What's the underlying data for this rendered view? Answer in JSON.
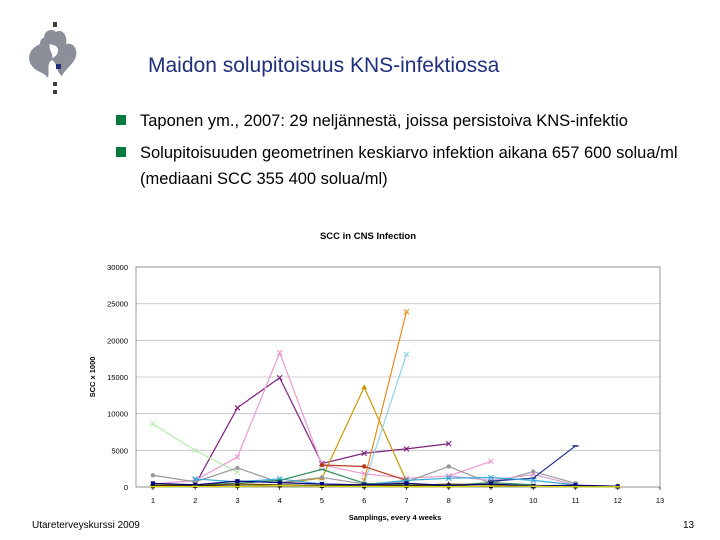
{
  "slide": {
    "title": "Maidon solupitoisuus KNS-infektiossa",
    "bullets": [
      "Taponen ym., 2007: 29 neljännestä, joissa persistoiva KNS-infektio",
      "Solupitoisuuden geometrinen keskiarvo infektion aikana 657 600 solua/ml (mediaani SCC 355 400 solua/ml)"
    ],
    "footer_left": "Utareterveyskurssi 2009",
    "page_number": "13",
    "logo_icon": "university-helsinki-flame-logo-icon"
  },
  "chart_data": {
    "type": "line",
    "title": "SCC in CNS Infection",
    "xlabel": "Samplings, every 4 weeks",
    "ylabel": "SCC x 1000",
    "x": [
      1,
      2,
      3,
      4,
      5,
      6,
      7,
      8,
      9,
      10,
      11,
      12,
      13
    ],
    "xticks": [
      "1",
      "2",
      "3",
      "4",
      "5",
      "6",
      "7",
      "8",
      "9",
      "10",
      "11",
      "12",
      "13"
    ],
    "ylim": [
      0,
      30000
    ],
    "yticks": [
      "0",
      "5000",
      "10000",
      "15000",
      "20000",
      "25000",
      "30000"
    ],
    "grid": "horizontal",
    "series": [
      {
        "color": "#7f1f7f",
        "marker": "x",
        "points": [
          [
            2,
            300
          ],
          [
            3,
            10800
          ],
          [
            4,
            14900
          ],
          [
            5,
            3200
          ],
          [
            6,
            4600
          ],
          [
            7,
            5200
          ],
          [
            8,
            5900
          ]
        ]
      },
      {
        "color": "#e79bd1",
        "marker": "x",
        "points": [
          [
            1,
            400
          ],
          [
            2,
            900
          ],
          [
            3,
            4100
          ],
          [
            4,
            18300
          ],
          [
            5,
            3000
          ],
          [
            6,
            1800
          ],
          [
            7,
            1200
          ],
          [
            8,
            1500
          ],
          [
            9,
            3500
          ]
        ]
      },
      {
        "color": "#e88c1e",
        "marker": "x",
        "points": [
          [
            6,
            900
          ],
          [
            7,
            23900
          ]
        ]
      },
      {
        "color": "#c99a00",
        "marker": "tri",
        "points": [
          [
            4,
            500
          ],
          [
            5,
            1200
          ],
          [
            6,
            13600
          ],
          [
            7,
            800
          ]
        ]
      },
      {
        "color": "#8fd3e8",
        "marker": "x",
        "points": [
          [
            6,
            400
          ],
          [
            7,
            18100
          ]
        ]
      },
      {
        "color": "#b8ecb0",
        "marker": "x",
        "points": [
          [
            1,
            8600
          ],
          [
            2,
            5000
          ],
          [
            3,
            2000
          ]
        ]
      },
      {
        "color": "#999999",
        "marker": "circle",
        "points": [
          [
            1,
            1600
          ],
          [
            2,
            700
          ],
          [
            3,
            2600
          ],
          [
            4,
            600
          ],
          [
            5,
            1300
          ],
          [
            6,
            400
          ],
          [
            7,
            700
          ],
          [
            8,
            2800
          ],
          [
            9,
            500
          ],
          [
            10,
            2100
          ],
          [
            11,
            500
          ]
        ]
      },
      {
        "color": "#b33a1a",
        "marker": "circle",
        "points": [
          [
            5,
            3000
          ],
          [
            6,
            2800
          ],
          [
            7,
            900
          ]
        ]
      },
      {
        "color": "#d4a0d0",
        "marker": "x",
        "points": [
          [
            8,
            1500
          ],
          [
            9,
            900
          ],
          [
            10,
            1700
          ],
          [
            11,
            300
          ]
        ]
      },
      {
        "color": "#1f2f8a",
        "marker": "dash",
        "points": [
          [
            9,
            800
          ],
          [
            10,
            1200
          ],
          [
            11,
            5600
          ]
        ]
      },
      {
        "color": "#34a8d8",
        "marker": "x",
        "points": [
          [
            2,
            1100
          ],
          [
            3,
            700
          ],
          [
            4,
            1100
          ],
          [
            5,
            400
          ],
          [
            6,
            300
          ],
          [
            7,
            900
          ],
          [
            8,
            1200
          ],
          [
            9,
            1300
          ],
          [
            10,
            900
          ],
          [
            11,
            300
          ]
        ]
      },
      {
        "color": "#2e8b57",
        "marker": "dash",
        "points": [
          [
            1,
            200
          ],
          [
            2,
            300
          ],
          [
            3,
            500
          ],
          [
            4,
            900
          ],
          [
            5,
            2400
          ],
          [
            6,
            500
          ],
          [
            7,
            300
          ],
          [
            8,
            200
          ],
          [
            9,
            600
          ],
          [
            10,
            300
          ]
        ]
      },
      {
        "color": "#6b4a00",
        "marker": "tri",
        "points": [
          [
            1,
            300
          ],
          [
            2,
            200
          ],
          [
            3,
            400
          ],
          [
            4,
            300
          ],
          [
            5,
            200
          ],
          [
            6,
            300
          ],
          [
            7,
            200
          ],
          [
            8,
            400
          ],
          [
            9,
            300
          ],
          [
            10,
            100
          ],
          [
            11,
            200
          ],
          [
            12,
            100
          ]
        ]
      },
      {
        "color": "#000000",
        "marker": "square",
        "points": [
          [
            1,
            100
          ],
          [
            2,
            150
          ],
          [
            3,
            120
          ],
          [
            4,
            200
          ],
          [
            5,
            150
          ],
          [
            6,
            100
          ],
          [
            7,
            120
          ],
          [
            8,
            90
          ],
          [
            9,
            110
          ],
          [
            10,
            100
          ],
          [
            11,
            80
          ],
          [
            12,
            60
          ]
        ]
      },
      {
        "color": "#00007f",
        "marker": "square",
        "points": [
          [
            1,
            500
          ],
          [
            2,
            300
          ],
          [
            3,
            800
          ],
          [
            4,
            600
          ],
          [
            5,
            400
          ],
          [
            6,
            300
          ],
          [
            7,
            500
          ],
          [
            8,
            200
          ],
          [
            9,
            400
          ],
          [
            10,
            150
          ],
          [
            11,
            250
          ],
          [
            12,
            100
          ]
        ]
      },
      {
        "color": "#d8d800",
        "marker": "dash",
        "points": [
          [
            1,
            50
          ],
          [
            2,
            80
          ],
          [
            3,
            60
          ],
          [
            4,
            200
          ],
          [
            5,
            100
          ],
          [
            6,
            80
          ],
          [
            7,
            60
          ],
          [
            8,
            50
          ],
          [
            9,
            120
          ],
          [
            10,
            90
          ],
          [
            11,
            40
          ],
          [
            12,
            30
          ]
        ]
      }
    ]
  }
}
